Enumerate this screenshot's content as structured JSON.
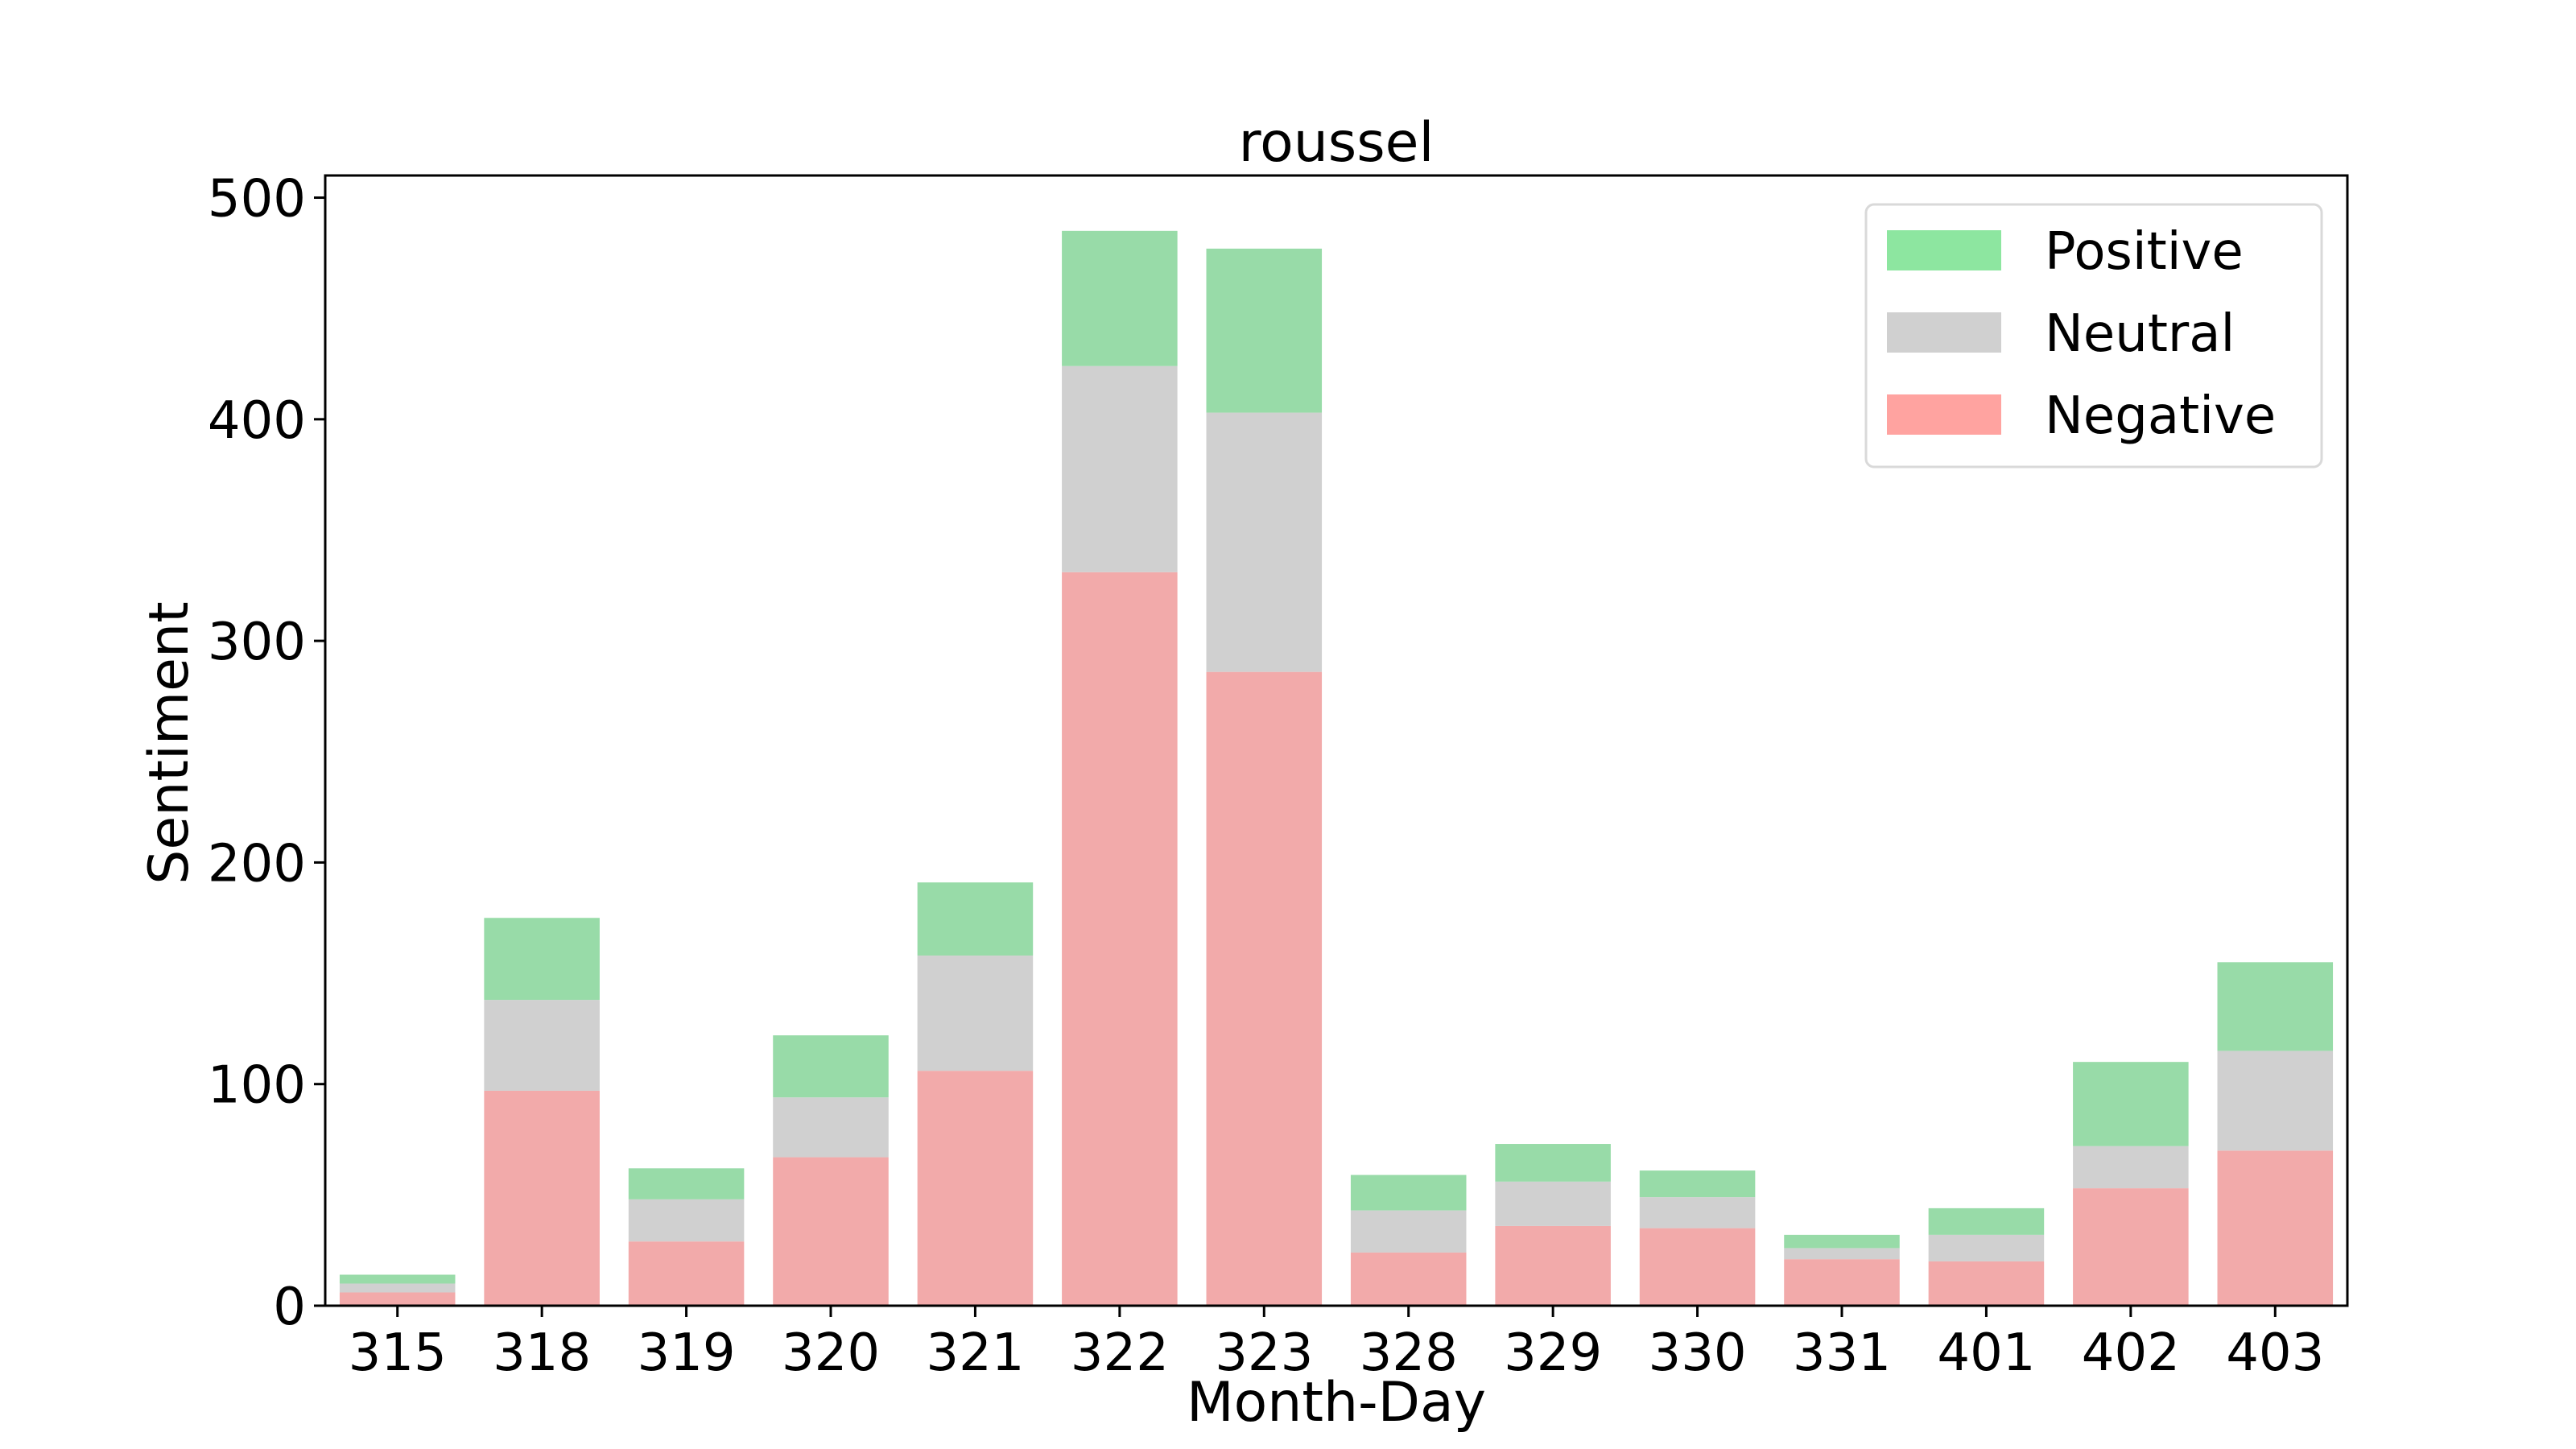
{
  "chart_data": {
    "type": "bar",
    "stacked": true,
    "title": "roussel",
    "xlabel": "Month-Day",
    "ylabel": "Sentiment",
    "ylim": [
      0,
      510
    ],
    "yticks": [
      0,
      100,
      200,
      300,
      400,
      500
    ],
    "categories": [
      "315",
      "318",
      "319",
      "320",
      "321",
      "322",
      "323",
      "328",
      "329",
      "330",
      "331",
      "401",
      "402",
      "403"
    ],
    "series": [
      {
        "name": "Negative",
        "color": "#f2aaaa",
        "values": [
          6,
          97,
          29,
          67,
          106,
          331,
          286,
          24,
          36,
          35,
          21,
          20,
          53,
          70
        ]
      },
      {
        "name": "Neutral",
        "color": "#d0d0d0",
        "values": [
          4,
          41,
          19,
          27,
          52,
          93,
          117,
          19,
          20,
          14,
          5,
          12,
          19,
          45
        ]
      },
      {
        "name": "Positive",
        "color": "#98dba8",
        "values": [
          4,
          37,
          14,
          28,
          33,
          61,
          74,
          16,
          17,
          12,
          6,
          12,
          38,
          40
        ]
      }
    ],
    "legend": {
      "position": "top-right",
      "entries": [
        {
          "label": "Positive",
          "color": "#8de6a0"
        },
        {
          "label": "Neutral",
          "color": "#d0d0d0"
        },
        {
          "label": "Negative",
          "color": "#ffa3a0"
        }
      ]
    },
    "grid": false
  }
}
